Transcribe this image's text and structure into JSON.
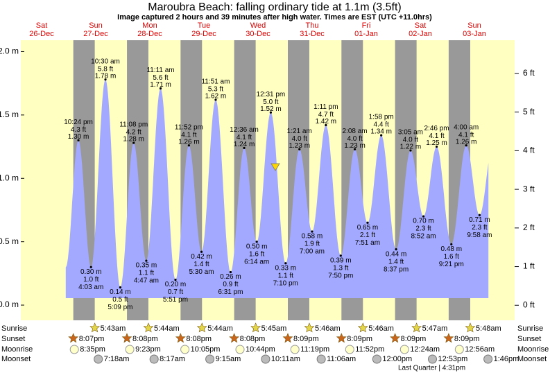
{
  "chart_data": {
    "type": "tide",
    "title": "Maroubra Beach: falling  ordinary tide at 1.1m (3.5ft)",
    "subtitle": "Image captured 2 hours and 39 minutes after high water. Times are EST (UTC +11.0hrs)",
    "days": [
      {
        "weekday": "Sat",
        "date": "26-Dec"
      },
      {
        "weekday": "Sun",
        "date": "27-Dec"
      },
      {
        "weekday": "Mon",
        "date": "28-Dec"
      },
      {
        "weekday": "Tue",
        "date": "29-Dec"
      },
      {
        "weekday": "Wed",
        "date": "30-Dec"
      },
      {
        "weekday": "Thu",
        "date": "31-Dec"
      },
      {
        "weekday": "Fri",
        "date": "01-Jan"
      },
      {
        "weekday": "Sat",
        "date": "02-Jan"
      },
      {
        "weekday": "Sun",
        "date": "03-Jan"
      }
    ],
    "ylim": [
      -0.12,
      2.09
    ],
    "yticks": [
      {
        "value": 0,
        "label": "0.0 m"
      },
      {
        "value": 0.5,
        "label": "0.5 m"
      },
      {
        "value": 1,
        "label": "1.0 m"
      },
      {
        "value": 1.5,
        "label": "1.5 m"
      },
      {
        "value": 2,
        "label": "2.0 m"
      }
    ],
    "y2lim": [
      -0.39,
      6.86
    ],
    "y2ticks": [
      {
        "value": 0,
        "label": "0 ft"
      },
      {
        "value": 1,
        "label": "1 ft"
      },
      {
        "value": 2,
        "label": "2 ft"
      },
      {
        "value": 3,
        "label": "3 ft"
      },
      {
        "value": 4,
        "label": "4 ft"
      },
      {
        "value": 5,
        "label": "5 ft"
      },
      {
        "value": 6,
        "label": "6 ft"
      }
    ],
    "color": "#a3a9ff",
    "tide": {
      "times": [
        "10:24 pm",
        "4:03 am",
        "10:30 am",
        "5:09 pm",
        "11:08 pm",
        "4:47 am",
        "11:11 am",
        "5:51 pm",
        "11:52 pm",
        "5:30 am",
        "11:51 am",
        "6:31 pm",
        "12:36 am",
        "6:14 am",
        "12:31 pm",
        "7:10 pm",
        "1:21 am",
        "7:00 am",
        "1:11 pm",
        "7:50 pm",
        "2:08 am",
        "7:51 am",
        "1:58 pm",
        "8:37 pm",
        "3:05 am",
        "8:52 am",
        "2:46 pm",
        "9:21 pm",
        "4:00 am",
        "9:58 am"
      ],
      "kinds": [
        "high",
        "low",
        "high",
        "low",
        "high",
        "low",
        "high",
        "low",
        "high",
        "low",
        "high",
        "low",
        "high",
        "low",
        "high",
        "low",
        "high",
        "low",
        "high",
        "low",
        "high",
        "low",
        "high",
        "low",
        "high",
        "low",
        "high",
        "low",
        "high",
        "low"
      ],
      "values": [
        1.3,
        0.3,
        1.78,
        0.14,
        1.28,
        0.35,
        1.71,
        0.2,
        1.26,
        0.42,
        1.62,
        0.26,
        1.24,
        0.5,
        1.52,
        0.33,
        1.23,
        0.58,
        1.42,
        0.39,
        1.23,
        0.65,
        1.34,
        0.44,
        1.22,
        0.7,
        1.25,
        0.48,
        1.26,
        0.71
      ],
      "value_labels": [
        "1.30 m",
        "0.30 m",
        "1.78 m",
        "0.14 m",
        "1.28 m",
        "0.35 m",
        "1.71 m",
        "0.20 m",
        "1.26 m",
        "0.42 m",
        "1.62 m",
        "0.26 m",
        "1.24 m",
        "0.50 m",
        "1.52 m",
        "0.33 m",
        "1.23 m",
        "0.58 m",
        "1.42 m",
        "0.39 m",
        "1.23 m",
        "0.65 m",
        "1.34 m",
        "0.44 m",
        "1.22 m",
        "0.70 m",
        "1.25 m",
        "0.48 m",
        "1.26 m",
        "0.71 m"
      ],
      "ft_values": [
        4.3,
        1.0,
        5.8,
        0.5,
        4.2,
        1.1,
        5.6,
        0.7,
        4.1,
        1.4,
        5.3,
        0.9,
        4.1,
        1.6,
        5.0,
        1.1,
        4.0,
        1.9,
        4.7,
        1.3,
        4.0,
        2.1,
        4.4,
        1.4,
        4.0,
        2.3,
        4.1,
        1.6,
        4.1,
        2.3
      ],
      "ft_labels": [
        "4.3 ft",
        "1.0 ft",
        "5.8 ft",
        "0.5 ft",
        "4.2 ft",
        "1.1 ft",
        "5.6 ft",
        "0.7 ft",
        "4.1 ft",
        "1.4 ft",
        "5.3 ft",
        "0.9 ft",
        "4.1 ft",
        "1.6 ft",
        "5.0 ft",
        "1.1 ft",
        "4.0 ft",
        "1.9 ft",
        "4.7 ft",
        "1.3 ft",
        "4.0 ft",
        "2.1 ft",
        "4.4 ft",
        "1.4 ft",
        "4.0 ft",
        "2.3 ft",
        "4.1 ft",
        "1.6 ft",
        "4.1 ft",
        "2.3 ft"
      ]
    },
    "sun_moon": [
      {
        "label": "Sunrise",
        "times": [
          "5:43am",
          "5:44am",
          "5:44am",
          "5:45am",
          "5:46am",
          "5:46am",
          "5:47am",
          "5:48am"
        ]
      },
      {
        "label": "Sunset",
        "times": [
          "8:07pm",
          "8:08pm",
          "8:08pm",
          "8:08pm",
          "8:09pm",
          "8:09pm",
          "8:09pm",
          "8:09pm"
        ]
      },
      {
        "label": "Moonrise",
        "times": [
          "8:35pm",
          "9:23pm",
          "10:05pm",
          "10:44pm",
          "11:19pm",
          "11:52pm",
          "12:24am",
          "12:56am"
        ]
      },
      {
        "label": "Moonset",
        "times": [
          "7:18am",
          "8:17am",
          "9:15am",
          "10:11am",
          "11:06am",
          "12:00pm",
          "12:53pm",
          "1:46pm"
        ]
      }
    ],
    "moon_phase": "Last Quarter | 4:31pm"
  }
}
